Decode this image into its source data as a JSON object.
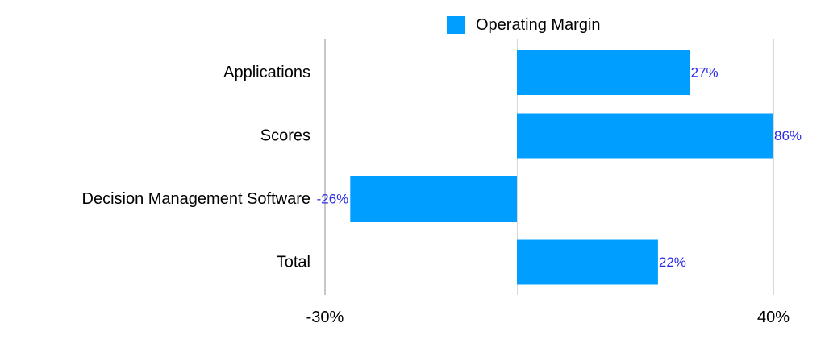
{
  "chart_data": {
    "type": "bar",
    "orientation": "horizontal",
    "categories": [
      "Applications",
      "Scores",
      "Decision Management  Software",
      "Total"
    ],
    "series": [
      {
        "name": "Operating Margin",
        "values": [
          27,
          86,
          -26,
          22
        ],
        "labels": [
          "27%",
          "86%",
          "-26%",
          "22%"
        ]
      }
    ],
    "x_ticks": [
      "-30%",
      "40%"
    ],
    "legend_position": "top-center",
    "grid": "vertical",
    "colors": {
      "bar": "#009FFF",
      "data_label": "#2B2BE8",
      "axis_text": "#000000",
      "grid": "#D9D9D9",
      "axis_line": "#8C8C8C",
      "background": "#FFFFFF"
    }
  }
}
